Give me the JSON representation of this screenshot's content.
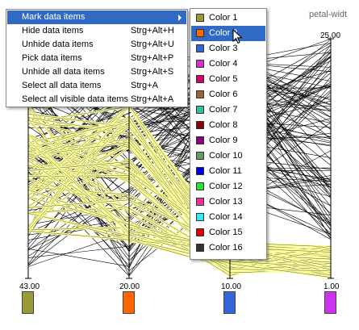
{
  "column_title": "petal-widt",
  "axes": {
    "top_labels": [
      "",
      "",
      "",
      "25.00"
    ],
    "bottom_labels": [
      "43.00",
      "20.00",
      "10.00",
      "1.00"
    ],
    "colors": [
      "#9a9a3a",
      "#ff6600",
      "#3366dd",
      "#cc33ee"
    ]
  },
  "context_menu": {
    "items": [
      {
        "label": "Mark data items",
        "shortcut": "",
        "submenu": true,
        "highlighted": true
      },
      {
        "label": "Hide data items",
        "shortcut": "Strg+Alt+H"
      },
      {
        "label": "Unhide data items",
        "shortcut": "Strg+Alt+U"
      },
      {
        "label": "Pick data items",
        "shortcut": "Strg+Alt+P"
      },
      {
        "label": "Unhide all data items",
        "shortcut": "Strg+Alt+S"
      },
      {
        "label": "Select all data items",
        "shortcut": "Strg+A"
      },
      {
        "label": "Select all visible data items",
        "shortcut": "Strg+Alt+A"
      }
    ]
  },
  "color_submenu": {
    "items": [
      {
        "label": "Color 1",
        "color": "#999933"
      },
      {
        "label": "Color 2",
        "color": "#ff6600",
        "highlighted": true
      },
      {
        "label": "Color 3",
        "color": "#3366cc"
      },
      {
        "label": "Color 4",
        "color": "#cc33cc"
      },
      {
        "label": "Color 5",
        "color": "#cc0066"
      },
      {
        "label": "Color 6",
        "color": "#996633"
      },
      {
        "label": "Color 7",
        "color": "#33bb99"
      },
      {
        "label": "Color 8",
        "color": "#880000"
      },
      {
        "label": "Color 9",
        "color": "#880088"
      },
      {
        "label": "Color 10",
        "color": "#669966"
      },
      {
        "label": "Color 11",
        "color": "#0000dd"
      },
      {
        "label": "Color 12",
        "color": "#33dd33"
      },
      {
        "label": "Color 13",
        "color": "#ee3399"
      },
      {
        "label": "Color 14",
        "color": "#33eeee"
      },
      {
        "label": "Color 15",
        "color": "#dd0000"
      },
      {
        "label": "Color 16",
        "color": "#333333"
      }
    ]
  }
}
